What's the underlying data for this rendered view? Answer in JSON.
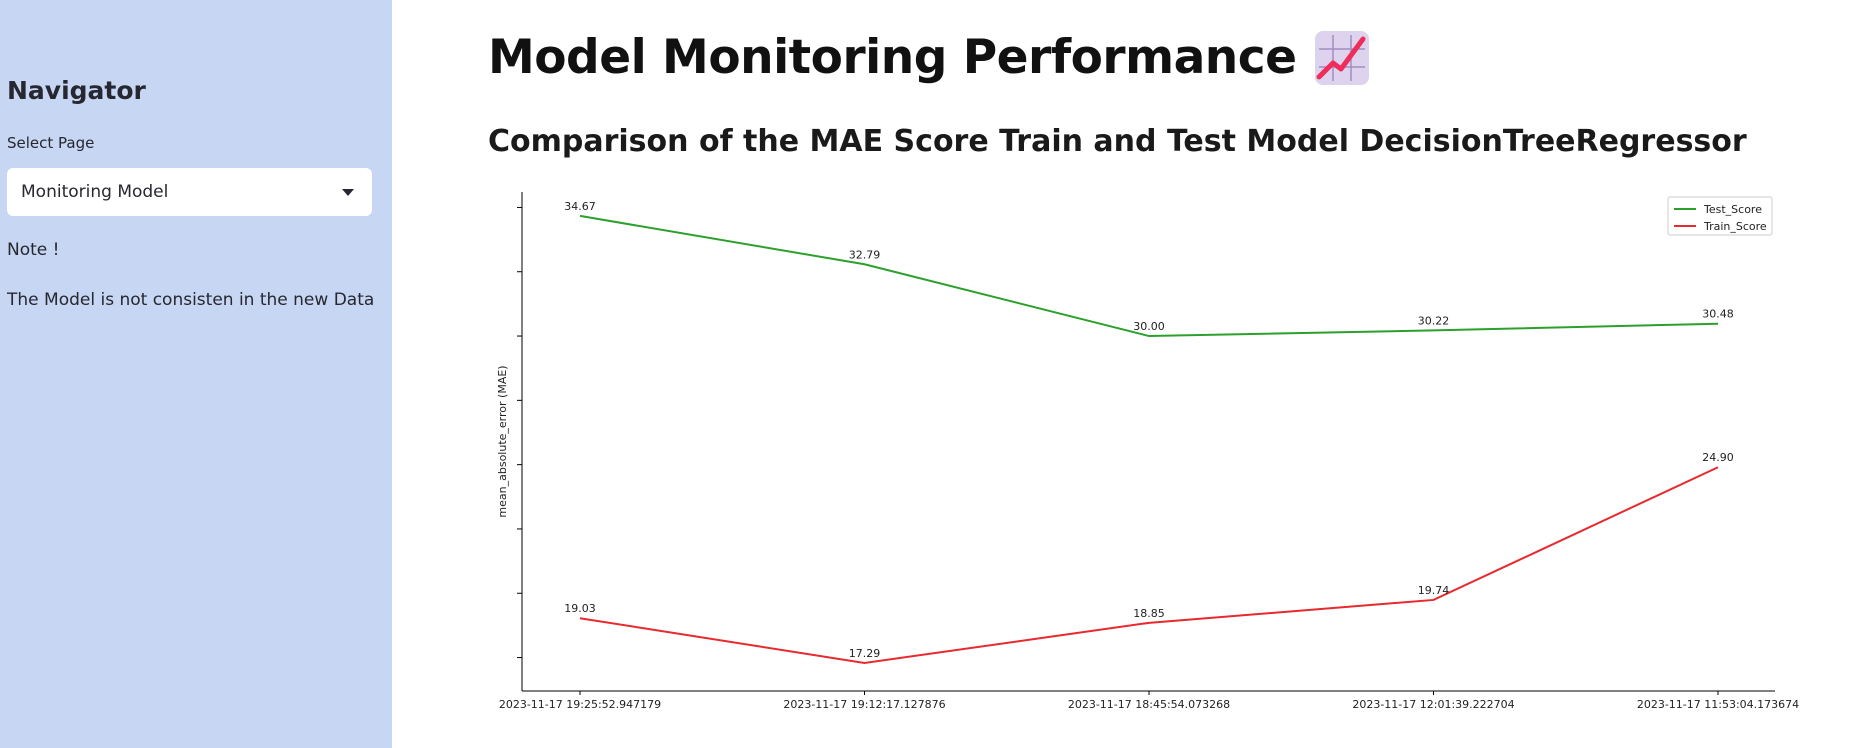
{
  "sidebar": {
    "title": "Navigator",
    "select_label": "Select Page",
    "select_value": "Monitoring Model",
    "note_title": "Note !",
    "note_text": "The Model is not consisten in the new Data"
  },
  "main": {
    "title": "Model Monitoring Performance",
    "subtitle": "Comparison of the MAE Score Train and Test Model DecisionTreeRegressor"
  },
  "colors": {
    "sidebar_bg": "#c7d6f2",
    "test_line": "#2ca02c",
    "train_line": "#e8292e"
  },
  "chart_data": {
    "type": "line",
    "title": "",
    "xlabel": "",
    "ylabel": "mean_absolute_error (MAE)",
    "categories": [
      "2023-11-17 19:25:52.947179",
      "2023-11-17 19:12:17.127876",
      "2023-11-17 18:45:54.073268",
      "2023-11-17 12:01:39.222704",
      "2023-11-17 11:53:04.173674"
    ],
    "series": [
      {
        "name": "Test_Score",
        "color": "#2ca02c",
        "values": [
          34.67,
          32.79,
          30.0,
          30.22,
          30.48
        ],
        "labels": [
          "34.67",
          "32.79",
          "30.00",
          "30.22",
          "30.48"
        ]
      },
      {
        "name": "Train_Score",
        "color": "#e8292e",
        "values": [
          19.03,
          17.29,
          18.85,
          19.74,
          24.9
        ],
        "labels": [
          "19.03",
          "17.29",
          "18.85",
          "19.74",
          "24.90"
        ]
      }
    ],
    "ylim": [
      16.2,
      35.6
    ],
    "y_ticks": [
      17.5,
      20,
      22.5,
      25,
      27.5,
      30,
      32.5,
      35
    ],
    "y_tick_labels_visible": false,
    "grid": false,
    "legend_position": "top-right"
  }
}
